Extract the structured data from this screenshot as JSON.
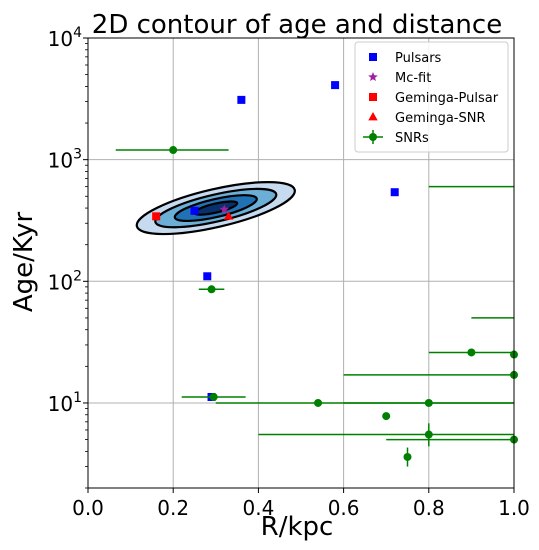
{
  "chart_data": {
    "type": "scatter",
    "title": "2D contour of age and distance",
    "xlabel": "R/kpc",
    "ylabel": "Age/Kyr",
    "xlim": [
      0.0,
      1.0
    ],
    "ylim": [
      2,
      10000
    ],
    "yscale": "log",
    "grid": true,
    "legend_position": "top-right",
    "x_ticks": [
      "0.0",
      "0.2",
      "0.4",
      "0.6",
      "0.8",
      "1.0"
    ],
    "x_tick_values": [
      0.0,
      0.2,
      0.4,
      0.6,
      0.8,
      1.0
    ],
    "y_ticks": [
      {
        "value": 10,
        "base": "10",
        "exp": "1"
      },
      {
        "value": 100,
        "base": "10",
        "exp": "2"
      },
      {
        "value": 1000,
        "base": "10",
        "exp": "3"
      },
      {
        "value": 10000,
        "base": "10",
        "exp": "4"
      }
    ],
    "contour": {
      "center": [
        0.3,
        400
      ],
      "fill_colors": [
        "#c6dbef",
        "#6baed6",
        "#2171b5",
        "#08306b"
      ],
      "line_color": "#000000"
    },
    "series": [
      {
        "name": "Pulsars",
        "marker": "square",
        "color": "#0000ff",
        "points": [
          {
            "x": 0.36,
            "y": 3100
          },
          {
            "x": 0.58,
            "y": 4100
          },
          {
            "x": 0.72,
            "y": 540
          },
          {
            "x": 0.25,
            "y": 380
          },
          {
            "x": 0.28,
            "y": 110
          },
          {
            "x": 0.29,
            "y": 11.2
          }
        ]
      },
      {
        "name": "Mc-fit",
        "marker": "star",
        "color": "#a020a0",
        "points": [
          {
            "x": 0.32,
            "y": 390
          }
        ]
      },
      {
        "name": "Geminga-Pulsar",
        "marker": "square",
        "color": "#ff0000",
        "points": [
          {
            "x": 0.16,
            "y": 342
          }
        ]
      },
      {
        "name": "Geminga-SNR",
        "marker": "triangle",
        "color": "#ff0000",
        "points": [
          {
            "x": 0.33,
            "y": 342
          }
        ]
      },
      {
        "name": "SNRs",
        "marker": "circle-errorbar",
        "color": "#008000",
        "points": [
          {
            "x": 0.2,
            "y": 1200,
            "xerr": [
              0.065,
              0.33
            ]
          },
          {
            "x": 0.29,
            "y": 86,
            "xerr": [
              0.26,
              0.32
            ]
          },
          {
            "x": 0.295,
            "y": 11.2,
            "xerr": [
              0.22,
              0.37
            ]
          },
          {
            "x": 0.54,
            "y": 10,
            "xerr": [
              0.3,
              1.0
            ],
            "yerr": [
              9.5,
              10.5
            ]
          },
          {
            "x": 0.7,
            "y": 7.8
          },
          {
            "x": 0.8,
            "y": 10,
            "xerr": [
              0.6,
              1.0
            ]
          },
          {
            "x": 0.8,
            "y": 5.5,
            "xerr": [
              0.4,
              1.0
            ],
            "yerr": [
              4.4,
              6.8
            ]
          },
          {
            "x": 0.75,
            "y": 3.6,
            "yerr": [
              3.0,
              4.3
            ]
          },
          {
            "x": 0.9,
            "y": 26,
            "xerr": [
              0.8,
              1.0
            ]
          },
          {
            "x": 1.0,
            "y": 25
          },
          {
            "x": 1.0,
            "y": 17,
            "xerr": [
              0.6,
              1.0
            ]
          },
          {
            "x": 1.0,
            "y": 5,
            "xerr": [
              0.7,
              1.0
            ]
          },
          {
            "x": 1.0,
            "y": 600,
            "xerr": [
              0.8,
              1.0
            ],
            "hidden_marker": true
          },
          {
            "x": 1.0,
            "y": 50,
            "xerr": [
              0.9,
              1.0
            ],
            "hidden_marker": true
          }
        ]
      }
    ]
  }
}
